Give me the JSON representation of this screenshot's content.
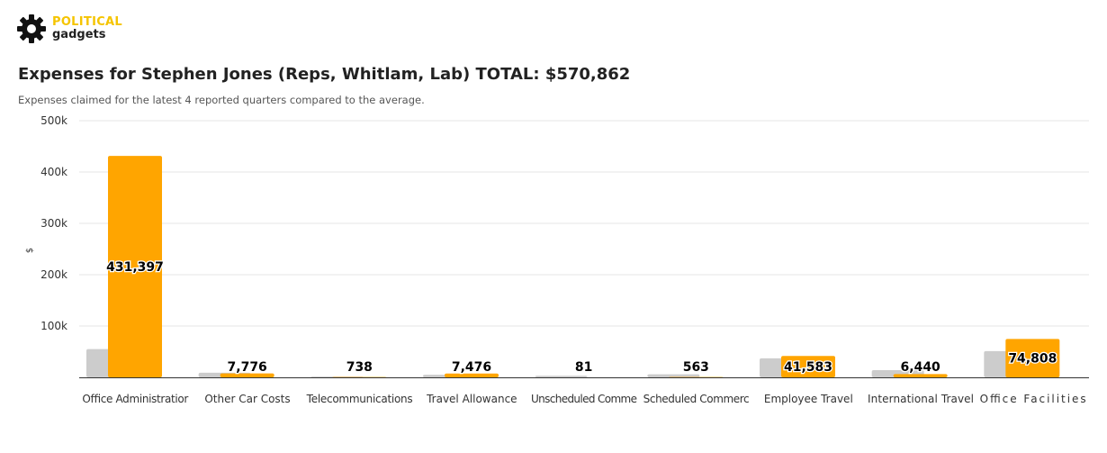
{
  "logo": {
    "line1": "POLITICAL",
    "line2": "gadgets",
    "icon": "gear-icon"
  },
  "title": "Expenses for Stephen Jones (Reps, Whitlam, Lab) TOTAL: $570,862",
  "subtitle": "Expenses claimed for the latest 4 reported quarters compared to the average.",
  "colors": {
    "member": "#ffa500",
    "average": "#cccccc",
    "grid": "#e6e6e6",
    "axis": "#333333"
  },
  "chart_data": {
    "type": "bar",
    "ylabel": "$",
    "ylim": [
      0,
      500000
    ],
    "yticks": [
      100000,
      200000,
      300000,
      400000,
      500000
    ],
    "ytick_labels": [
      "100k",
      "200k",
      "300k",
      "400k",
      "500k"
    ],
    "categories": [
      "Office Administration",
      "Other Car Costs",
      "Telecommunications",
      "Travel Allowance",
      "Unscheduled Commercial Transport",
      "Scheduled Commercial Transport",
      "Employee Travel",
      "International Travel",
      "Office Facilities"
    ],
    "category_labels": [
      "Office Administratior",
      "Other Car Costs",
      "Telecommunications",
      "Travel Allowance",
      "Unscheduled Comme",
      "Scheduled Commerc",
      "Employee Travel",
      "International Travel",
      "Office Facilities"
    ],
    "series": [
      {
        "values": [
          55000,
          9000,
          1500,
          5000,
          3000,
          6000,
          37000,
          14000,
          51000
        ]
      },
      {
        "values": [
          431397,
          7776,
          738,
          7476,
          81,
          563,
          41583,
          6440,
          74808
        ]
      }
    ],
    "data_labels": [
      "431,397",
      "7,776",
      "738",
      "7,476",
      "81",
      "563",
      "41,583",
      "6,440",
      "74,808"
    ],
    "grid": true,
    "legend": false
  }
}
